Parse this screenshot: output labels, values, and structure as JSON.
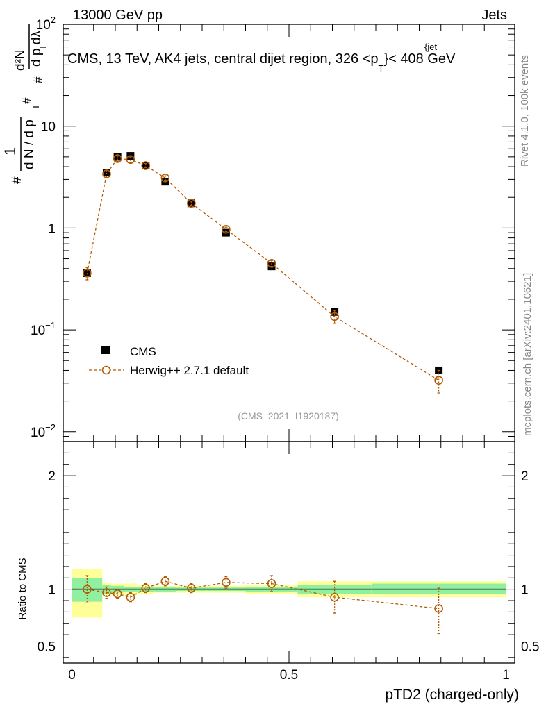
{
  "header": {
    "energy_label": "13000 GeV pp",
    "category_label": "Jets",
    "plot_title": "CMS, 13 TeV, AK4 jets, central dijet region, 326 <p",
    "plot_title_sub": "T",
    "plot_title_sup": "{jet",
    "plot_title_end": "}< 408 GeV",
    "analysis_id": "(CMS_2021_I1920187)",
    "rivet_label": "Rivet 4.1.0,  100k events",
    "site_label": "mcplots.cern.ch [arXiv:2401.10621]"
  },
  "colors": {
    "data": "#000000",
    "mc": "#b35900",
    "band_inner": "#90f0a0",
    "band_outer": "#ffff99"
  },
  "chart_data": [
    {
      "type": "scatter",
      "panel": "main",
      "scale": "log",
      "ylabel": "1/(dN/dp_T) d²N/(dp_T dλ)",
      "ylim": [
        0.008,
        100
      ],
      "yticks": [
        {
          "value": 100,
          "mantissa": "10",
          "exp": "2"
        },
        {
          "value": 10,
          "mantissa": "10",
          "exp": ""
        },
        {
          "value": 1,
          "mantissa": "1",
          "exp": ""
        },
        {
          "value": 0.1,
          "mantissa": "10",
          "exp": "−1"
        },
        {
          "value": 0.01,
          "mantissa": "10",
          "exp": "−2"
        }
      ],
      "series": [
        {
          "name": "CMS",
          "x": [
            0.035,
            0.08,
            0.105,
            0.135,
            0.17,
            0.215,
            0.275,
            0.355,
            0.46,
            0.605,
            0.845
          ],
          "y": [
            0.36,
            3.5,
            5.0,
            5.1,
            4.1,
            2.85,
            1.75,
            0.9,
            0.42,
            0.15,
            0.04
          ]
        },
        {
          "name": "Herwig++ 2.7.1 default",
          "x": [
            0.035,
            0.08,
            0.105,
            0.135,
            0.17,
            0.215,
            0.275,
            0.355,
            0.46,
            0.605,
            0.845
          ],
          "y": [
            0.36,
            3.4,
            4.8,
            4.7,
            4.1,
            3.1,
            1.75,
            0.97,
            0.45,
            0.135,
            0.032
          ],
          "err": [
            0.05,
            0.3,
            0.3,
            0.3,
            0.2,
            0.15,
            0.08,
            0.05,
            0.03,
            0.02,
            0.008
          ]
        }
      ]
    },
    {
      "type": "scatter",
      "panel": "ratio",
      "xlabel": "pTD2 (charged-only)",
      "ylabel": "Ratio to CMS",
      "xlim": [
        -0.02,
        1.02
      ],
      "ylim": [
        0.35,
        2.3
      ],
      "xticks": [
        {
          "value": 0,
          "label": "0"
        },
        {
          "value": 0.5,
          "label": "0.5"
        },
        {
          "value": 1,
          "label": "1"
        }
      ],
      "yticks": [
        {
          "value": 0.5,
          "label": "0.5"
        },
        {
          "value": 1,
          "label": "1"
        },
        {
          "value": 2,
          "label": "2"
        }
      ],
      "bands": [
        {
          "x0": 0.0,
          "x1": 0.07,
          "inner": [
            0.89,
            1.1
          ],
          "outer": [
            0.75,
            1.18
          ]
        },
        {
          "x0": 0.07,
          "x1": 0.09,
          "inner": [
            0.96,
            1.04
          ],
          "outer": [
            0.94,
            1.06
          ]
        },
        {
          "x0": 0.09,
          "x1": 0.12,
          "inner": [
            0.97,
            1.03
          ],
          "outer": [
            0.95,
            1.05
          ]
        },
        {
          "x0": 0.12,
          "x1": 0.15,
          "inner": [
            0.98,
            1.02
          ],
          "outer": [
            0.95,
            1.05
          ]
        },
        {
          "x0": 0.15,
          "x1": 0.19,
          "inner": [
            0.98,
            1.02
          ],
          "outer": [
            0.96,
            1.04
          ]
        },
        {
          "x0": 0.19,
          "x1": 0.24,
          "inner": [
            0.98,
            1.02
          ],
          "outer": [
            0.97,
            1.03
          ]
        },
        {
          "x0": 0.24,
          "x1": 0.31,
          "inner": [
            0.985,
            1.015
          ],
          "outer": [
            0.97,
            1.03
          ]
        },
        {
          "x0": 0.31,
          "x1": 0.4,
          "inner": [
            0.985,
            1.015
          ],
          "outer": [
            0.97,
            1.03
          ]
        },
        {
          "x0": 0.4,
          "x1": 0.52,
          "inner": [
            0.98,
            1.02
          ],
          "outer": [
            0.96,
            1.04
          ]
        },
        {
          "x0": 0.52,
          "x1": 0.69,
          "inner": [
            0.96,
            1.04
          ],
          "outer": [
            0.93,
            1.07
          ]
        },
        {
          "x0": 0.69,
          "x1": 1.0,
          "inner": [
            0.96,
            1.05
          ],
          "outer": [
            0.93,
            1.07
          ]
        }
      ],
      "series": [
        {
          "name": "Herwig++ 2.7.1 default / CMS",
          "x": [
            0.035,
            0.08,
            0.105,
            0.135,
            0.17,
            0.215,
            0.275,
            0.355,
            0.46,
            0.605,
            0.845
          ],
          "y": [
            1.0,
            0.97,
            0.96,
            0.93,
            1.01,
            1.07,
            1.01,
            1.06,
            1.05,
            0.93,
            0.83
          ],
          "err_lo": [
            0.12,
            0.05,
            0.04,
            0.04,
            0.04,
            0.04,
            0.04,
            0.05,
            0.07,
            0.14,
            0.22
          ],
          "err_hi": [
            0.12,
            0.05,
            0.04,
            0.04,
            0.04,
            0.04,
            0.04,
            0.05,
            0.07,
            0.14,
            0.18
          ]
        }
      ]
    }
  ],
  "legend": {
    "data_label": "CMS",
    "mc_label": "Herwig++ 2.7.1 default"
  }
}
